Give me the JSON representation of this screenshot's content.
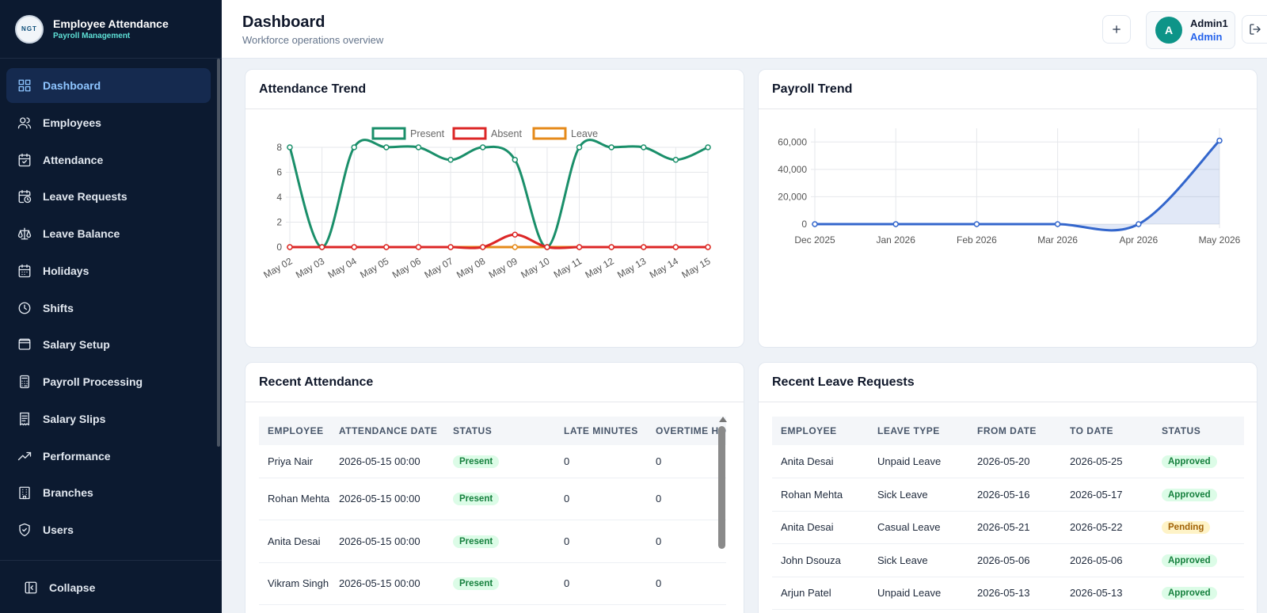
{
  "app": {
    "title": "Employee Attendance",
    "subtitle": "Payroll Management",
    "logo_text": "NGT"
  },
  "sidebar": {
    "items": [
      {
        "label": "Dashboard",
        "icon": "grid-icon"
      },
      {
        "label": "Employees",
        "icon": "users-icon"
      },
      {
        "label": "Attendance",
        "icon": "calendar-check-icon"
      },
      {
        "label": "Leave Requests",
        "icon": "calendar-clock-icon"
      },
      {
        "label": "Leave Balance",
        "icon": "scale-icon"
      },
      {
        "label": "Holidays",
        "icon": "calendar-days-icon"
      },
      {
        "label": "Shifts",
        "icon": "clock-icon"
      },
      {
        "label": "Salary Setup",
        "icon": "wallet-icon"
      },
      {
        "label": "Payroll Processing",
        "icon": "calculator-icon"
      },
      {
        "label": "Salary Slips",
        "icon": "receipt-icon"
      },
      {
        "label": "Performance",
        "icon": "trending-up-icon"
      },
      {
        "label": "Branches",
        "icon": "building-icon"
      },
      {
        "label": "Users",
        "icon": "shield-icon"
      }
    ],
    "active": "Dashboard",
    "collapse_label": "Collapse"
  },
  "header": {
    "title": "Dashboard",
    "subtitle": "Workforce operations overview",
    "add_icon": "plus-icon",
    "user": {
      "initial": "A",
      "name": "Admin1",
      "role": "Admin"
    },
    "logout_icon": "logout-icon"
  },
  "cards": {
    "attendance_trend": "Attendance Trend",
    "payroll_trend": "Payroll Trend",
    "recent_attendance": "Recent Attendance",
    "recent_leave": "Recent Leave Requests"
  },
  "chart_data": [
    {
      "type": "line",
      "title": "Attendance Trend",
      "categories": [
        "May 02",
        "May 03",
        "May 04",
        "May 05",
        "May 06",
        "May 07",
        "May 08",
        "May 09",
        "May 10",
        "May 11",
        "May 12",
        "May 13",
        "May 14",
        "May 15"
      ],
      "series": [
        {
          "name": "Present",
          "color": "#1a8f6a",
          "values": [
            8,
            0,
            8,
            8,
            8,
            7,
            8,
            7,
            0,
            8,
            8,
            8,
            7,
            8
          ]
        },
        {
          "name": "Absent",
          "color": "#dc2626",
          "values": [
            0,
            0,
            0,
            0,
            0,
            0,
            0,
            1,
            0,
            0,
            0,
            0,
            0,
            0
          ]
        },
        {
          "name": "Leave",
          "color": "#e58a1a",
          "values": [
            0,
            0,
            0,
            0,
            0,
            0,
            0,
            0,
            0,
            0,
            0,
            0,
            0,
            0
          ]
        }
      ],
      "ylim": [
        0,
        8
      ],
      "yticks": [
        "0",
        "2",
        "4",
        "6",
        "8"
      ],
      "legend": "top",
      "grid": true
    },
    {
      "type": "area",
      "title": "Payroll Trend",
      "categories": [
        "Dec 2025",
        "Jan 2026",
        "Feb 2026",
        "Mar 2026",
        "Apr 2026",
        "May 2026"
      ],
      "series": [
        {
          "color": "#3366cc",
          "values": [
            0,
            0,
            0,
            0,
            0,
            61000
          ]
        }
      ],
      "ylim": [
        0,
        70000
      ],
      "yticks": [
        "0",
        "20,000",
        "40,000",
        "60,000"
      ],
      "grid": true
    }
  ],
  "recent_attendance": {
    "columns": [
      "EMPLOYEE",
      "ATTENDANCE DATE",
      "STATUS",
      "LATE MINUTES",
      "OVERTIME HO"
    ],
    "rows": [
      {
        "employee": "Priya Nair",
        "date": "2026-05-15 00:00",
        "status": "Present",
        "late": "0",
        "overtime": "0"
      },
      {
        "employee": "Rohan Mehta",
        "date": "2026-05-15 00:00",
        "status": "Present",
        "late": "0",
        "overtime": "0"
      },
      {
        "employee": "Anita Desai",
        "date": "2026-05-15 00:00",
        "status": "Present",
        "late": "0",
        "overtime": "0"
      },
      {
        "employee": "Vikram Singh",
        "date": "2026-05-15 00:00",
        "status": "Present",
        "late": "0",
        "overtime": "0"
      }
    ]
  },
  "recent_leave": {
    "columns": [
      "EMPLOYEE",
      "LEAVE TYPE",
      "FROM DATE",
      "TO DATE",
      "STATUS"
    ],
    "rows": [
      {
        "employee": "Anita Desai",
        "type": "Unpaid Leave",
        "from": "2026-05-20",
        "to": "2026-05-25",
        "status": "Approved"
      },
      {
        "employee": "Rohan Mehta",
        "type": "Sick Leave",
        "from": "2026-05-16",
        "to": "2026-05-17",
        "status": "Approved"
      },
      {
        "employee": "Anita Desai",
        "type": "Casual Leave",
        "from": "2026-05-21",
        "to": "2026-05-22",
        "status": "Pending"
      },
      {
        "employee": "John Dsouza",
        "type": "Sick Leave",
        "from": "2026-05-06",
        "to": "2026-05-06",
        "status": "Approved"
      },
      {
        "employee": "Arjun Patel",
        "type": "Unpaid Leave",
        "from": "2026-05-13",
        "to": "2026-05-13",
        "status": "Approved"
      }
    ]
  }
}
